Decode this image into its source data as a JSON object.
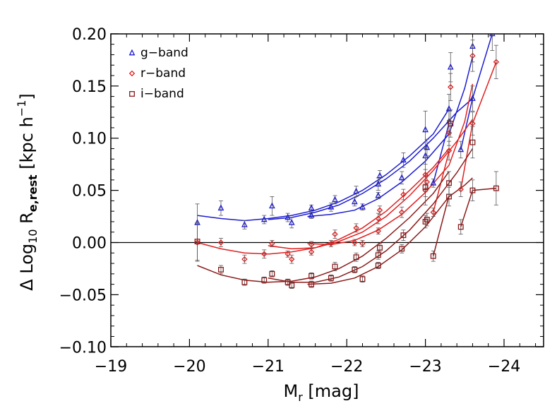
{
  "chart_data": {
    "type": "scatter",
    "title": "",
    "xlabel": {
      "main": "M",
      "sub": "r",
      "rest": " [mag]"
    },
    "ylabel": {
      "pre": "Δ Log",
      "sub1": "10",
      "mid": " R",
      "sub2": "e,rest",
      "post": " [kpc h",
      "sup": "−1",
      "end": "]"
    },
    "xlim": [
      -19,
      -24.5
    ],
    "ylim": [
      -0.105,
      0.2
    ],
    "x_reversed": true,
    "grid": false,
    "legend_position": "top-left",
    "x_ticks": [
      {
        "value": -19,
        "label": "−19"
      },
      {
        "value": -20,
        "label": "−20"
      },
      {
        "value": -21,
        "label": "−21"
      },
      {
        "value": -22,
        "label": "−22"
      },
      {
        "value": -23,
        "label": "−23"
      },
      {
        "value": -24,
        "label": "−24"
      }
    ],
    "y_ticks": [
      {
        "value": -0.1,
        "label": "−0.10"
      },
      {
        "value": -0.05,
        "label": "−0.05"
      },
      {
        "value": 0.0,
        "label": "0.00"
      },
      {
        "value": 0.05,
        "label": "0.05"
      },
      {
        "value": 0.1,
        "label": "0.10"
      },
      {
        "value": 0.15,
        "label": "0.15"
      },
      {
        "value": 0.2,
        "label": "0.20"
      }
    ],
    "reference_line_y": 0,
    "series": [
      {
        "name": "g−band",
        "color": "#1c1cd0",
        "marker": "triangle",
        "points": [
          {
            "x": -20.1,
            "y": 0.019,
            "err": 0.018
          },
          {
            "x": -20.4,
            "y": 0.033,
            "err": 0.007
          },
          {
            "x": -20.7,
            "y": 0.017,
            "err": 0.004
          },
          {
            "x": -20.95,
            "y": 0.022,
            "err": 0.004
          },
          {
            "x": -21.05,
            "y": 0.035,
            "err": 0.009
          },
          {
            "x": -21.25,
            "y": 0.024,
            "err": 0.004
          },
          {
            "x": -21.3,
            "y": 0.019,
            "err": 0.005
          },
          {
            "x": -21.55,
            "y": 0.026,
            "err": 0.003
          },
          {
            "x": -21.55,
            "y": 0.033,
            "err": 0.003
          },
          {
            "x": -21.8,
            "y": 0.034,
            "err": 0.004
          },
          {
            "x": -21.85,
            "y": 0.041,
            "err": 0.004
          },
          {
            "x": -22.1,
            "y": 0.039,
            "err": 0.004
          },
          {
            "x": -22.12,
            "y": 0.049,
            "err": 0.005
          },
          {
            "x": -22.2,
            "y": 0.034,
            "err": 0.003
          },
          {
            "x": -22.4,
            "y": 0.045,
            "err": 0.003
          },
          {
            "x": -22.4,
            "y": 0.056,
            "err": 0.006
          },
          {
            "x": -22.42,
            "y": 0.064,
            "err": 0.005
          },
          {
            "x": -22.7,
            "y": 0.062,
            "err": 0.006
          },
          {
            "x": -22.72,
            "y": 0.079,
            "err": 0.007
          },
          {
            "x": -23.0,
            "y": 0.083,
            "err": 0.008
          },
          {
            "x": -23.02,
            "y": 0.091,
            "err": 0.008
          },
          {
            "x": -23.0,
            "y": 0.108,
            "err": 0.018
          },
          {
            "x": -23.1,
            "y": 0.057,
            "err": 0.004
          },
          {
            "x": -23.3,
            "y": 0.116,
            "err": 0.011
          },
          {
            "x": -23.3,
            "y": 0.128,
            "err": 0.014
          },
          {
            "x": -23.32,
            "y": 0.168,
            "err": 0.014
          },
          {
            "x": -23.45,
            "y": 0.089,
            "err": 0.008
          },
          {
            "x": -23.6,
            "y": 0.138,
            "err": 0.012
          },
          {
            "x": -23.6,
            "y": 0.188,
            "err": 0.015
          },
          {
            "x": -23.85,
            "y": 0.2,
            "err": 0.016
          }
        ],
        "curves": [
          [
            [
              -20.1,
              0.026
            ],
            [
              -20.4,
              0.023
            ],
            [
              -20.7,
              0.021
            ],
            [
              -21.0,
              0.023
            ],
            [
              -21.3,
              0.026
            ],
            [
              -21.6,
              0.031
            ],
            [
              -21.9,
              0.039
            ],
            [
              -22.2,
              0.05
            ],
            [
              -22.5,
              0.065
            ],
            [
              -22.8,
              0.083
            ],
            [
              -23.1,
              0.104
            ],
            [
              -23.3,
              0.128
            ]
          ],
          [
            [
              -21.0,
              0.022
            ],
            [
              -21.3,
              0.024
            ],
            [
              -21.6,
              0.029
            ],
            [
              -21.9,
              0.036
            ],
            [
              -22.2,
              0.047
            ],
            [
              -22.5,
              0.061
            ],
            [
              -22.8,
              0.078
            ],
            [
              -23.1,
              0.1
            ],
            [
              -23.4,
              0.125
            ],
            [
              -23.6,
              0.138
            ]
          ],
          [
            [
              -21.5,
              0.025
            ],
            [
              -21.8,
              0.027
            ],
            [
              -22.1,
              0.031
            ],
            [
              -22.4,
              0.042
            ],
            [
              -22.7,
              0.058
            ],
            [
              -23.0,
              0.078
            ],
            [
              -23.3,
              0.104
            ],
            [
              -23.5,
              0.148
            ],
            [
              -23.6,
              0.178
            ]
          ],
          [
            [
              -23.1,
              0.057
            ],
            [
              -23.3,
              0.114
            ]
          ],
          [
            [
              -23.45,
              0.089
            ],
            [
              -23.6,
              0.138
            ],
            [
              -23.85,
              0.2
            ]
          ]
        ]
      },
      {
        "name": "r−band",
        "color": "#e02020",
        "marker": "diamond",
        "points": [
          {
            "x": -20.1,
            "y": 0.0,
            "err": 0.018
          },
          {
            "x": -20.4,
            "y": 0.0,
            "err": 0.004
          },
          {
            "x": -20.7,
            "y": -0.016,
            "err": 0.004
          },
          {
            "x": -20.95,
            "y": -0.011,
            "err": 0.004
          },
          {
            "x": -21.05,
            "y": -0.001,
            "err": 0.003
          },
          {
            "x": -21.25,
            "y": -0.011,
            "err": 0.003
          },
          {
            "x": -21.3,
            "y": -0.016,
            "err": 0.004
          },
          {
            "x": -21.55,
            "y": -0.009,
            "err": 0.003
          },
          {
            "x": -21.55,
            "y": -0.002,
            "err": 0.003
          },
          {
            "x": -21.8,
            "y": -0.001,
            "err": 0.003
          },
          {
            "x": -21.85,
            "y": 0.008,
            "err": 0.004
          },
          {
            "x": -22.1,
            "y": 0.0,
            "err": 0.003
          },
          {
            "x": -22.12,
            "y": 0.014,
            "err": 0.004
          },
          {
            "x": -22.2,
            "y": -0.001,
            "err": 0.003
          },
          {
            "x": -22.4,
            "y": 0.011,
            "err": 0.003
          },
          {
            "x": -22.4,
            "y": 0.023,
            "err": 0.005
          },
          {
            "x": -22.42,
            "y": 0.031,
            "err": 0.004
          },
          {
            "x": -22.7,
            "y": 0.029,
            "err": 0.005
          },
          {
            "x": -22.72,
            "y": 0.046,
            "err": 0.005
          },
          {
            "x": -23.0,
            "y": 0.05,
            "err": 0.006
          },
          {
            "x": -23.02,
            "y": 0.058,
            "err": 0.006
          },
          {
            "x": -23.0,
            "y": 0.065,
            "err": 0.016
          },
          {
            "x": -23.1,
            "y": 0.029,
            "err": 0.004
          },
          {
            "x": -23.3,
            "y": 0.088,
            "err": 0.009
          },
          {
            "x": -23.3,
            "y": 0.105,
            "err": 0.012
          },
          {
            "x": -23.32,
            "y": 0.149,
            "err": 0.013
          },
          {
            "x": -23.45,
            "y": 0.051,
            "err": 0.007
          },
          {
            "x": -23.6,
            "y": 0.114,
            "err": 0.011
          },
          {
            "x": -23.6,
            "y": 0.179,
            "err": 0.015
          },
          {
            "x": -23.9,
            "y": 0.173,
            "err": 0.016
          }
        ],
        "curves": [
          [
            [
              -20.1,
              0.0
            ],
            [
              -20.4,
              -0.006
            ],
            [
              -20.7,
              -0.01
            ],
            [
              -21.0,
              -0.011
            ],
            [
              -21.3,
              -0.009
            ],
            [
              -21.6,
              -0.005
            ],
            [
              -21.9,
              0.003
            ],
            [
              -22.2,
              0.014
            ],
            [
              -22.5,
              0.03
            ],
            [
              -22.8,
              0.05
            ],
            [
              -23.1,
              0.072
            ],
            [
              -23.3,
              0.09
            ]
          ],
          [
            [
              -21.0,
              -0.003
            ],
            [
              -21.3,
              -0.006
            ],
            [
              -21.6,
              -0.005
            ],
            [
              -21.9,
              0.001
            ],
            [
              -22.2,
              0.01
            ],
            [
              -22.5,
              0.025
            ],
            [
              -22.8,
              0.045
            ],
            [
              -23.1,
              0.069
            ],
            [
              -23.4,
              0.097
            ],
            [
              -23.6,
              0.118
            ]
          ],
          [
            [
              -21.5,
              -0.001
            ],
            [
              -21.8,
              -0.002
            ],
            [
              -22.1,
              0.002
            ],
            [
              -22.4,
              0.012
            ],
            [
              -22.7,
              0.027
            ],
            [
              -23.0,
              0.048
            ],
            [
              -23.3,
              0.074
            ],
            [
              -23.5,
              0.116
            ],
            [
              -23.6,
              0.152
            ]
          ],
          [
            [
              -23.1,
              0.029
            ],
            [
              -23.3,
              0.087
            ]
          ],
          [
            [
              -23.45,
              0.051
            ],
            [
              -23.6,
              0.114
            ],
            [
              -23.9,
              0.173
            ]
          ]
        ]
      },
      {
        "name": "i−band",
        "color": "#8b1a1a",
        "marker": "square",
        "points": [
          {
            "x": -20.1,
            "y": 0.001,
            "err": 0.018
          },
          {
            "x": -20.4,
            "y": -0.026,
            "err": 0.004
          },
          {
            "x": -20.7,
            "y": -0.038,
            "err": 0.003
          },
          {
            "x": -20.95,
            "y": -0.036,
            "err": 0.003
          },
          {
            "x": -21.05,
            "y": -0.03,
            "err": 0.003
          },
          {
            "x": -21.25,
            "y": -0.038,
            "err": 0.003
          },
          {
            "x": -21.3,
            "y": -0.041,
            "err": 0.003
          },
          {
            "x": -21.55,
            "y": -0.04,
            "err": 0.003
          },
          {
            "x": -21.55,
            "y": -0.032,
            "err": 0.003
          },
          {
            "x": -21.8,
            "y": -0.034,
            "err": 0.003
          },
          {
            "x": -21.85,
            "y": -0.023,
            "err": 0.004
          },
          {
            "x": -22.1,
            "y": -0.026,
            "err": 0.003
          },
          {
            "x": -22.12,
            "y": -0.014,
            "err": 0.004
          },
          {
            "x": -22.2,
            "y": -0.035,
            "err": 0.003
          },
          {
            "x": -22.4,
            "y": -0.022,
            "err": 0.003
          },
          {
            "x": -22.4,
            "y": -0.012,
            "err": 0.004
          },
          {
            "x": -22.42,
            "y": -0.005,
            "err": 0.004
          },
          {
            "x": -22.7,
            "y": -0.006,
            "err": 0.004
          },
          {
            "x": -22.72,
            "y": 0.007,
            "err": 0.005
          },
          {
            "x": -23.0,
            "y": 0.02,
            "err": 0.006
          },
          {
            "x": -23.02,
            "y": 0.022,
            "err": 0.006
          },
          {
            "x": -23.0,
            "y": 0.053,
            "err": 0.017
          },
          {
            "x": -23.1,
            "y": -0.013,
            "err": 0.005
          },
          {
            "x": -23.3,
            "y": 0.044,
            "err": 0.009
          },
          {
            "x": -23.3,
            "y": 0.057,
            "err": 0.011
          },
          {
            "x": -23.32,
            "y": 0.114,
            "err": 0.013
          },
          {
            "x": -23.45,
            "y": 0.015,
            "err": 0.007
          },
          {
            "x": -23.6,
            "y": 0.05,
            "err": 0.01
          },
          {
            "x": -23.6,
            "y": 0.096,
            "err": 0.015
          },
          {
            "x": -23.9,
            "y": 0.052,
            "err": 0.016
          }
        ],
        "curves": [
          [
            [
              -20.1,
              -0.022
            ],
            [
              -20.4,
              -0.031
            ],
            [
              -20.7,
              -0.036
            ],
            [
              -21.0,
              -0.038
            ],
            [
              -21.3,
              -0.037
            ],
            [
              -21.6,
              -0.033
            ],
            [
              -21.9,
              -0.025
            ],
            [
              -22.2,
              -0.013
            ],
            [
              -22.5,
              0.004
            ],
            [
              -22.8,
              0.024
            ],
            [
              -23.1,
              0.047
            ],
            [
              -23.3,
              0.068
            ]
          ],
          [
            [
              -21.0,
              -0.034
            ],
            [
              -21.3,
              -0.038
            ],
            [
              -21.6,
              -0.038
            ],
            [
              -21.9,
              -0.033
            ],
            [
              -22.2,
              -0.023
            ],
            [
              -22.5,
              -0.008
            ],
            [
              -22.8,
              0.012
            ],
            [
              -23.1,
              0.037
            ],
            [
              -23.4,
              0.067
            ],
            [
              -23.6,
              0.09
            ]
          ],
          [
            [
              -21.5,
              -0.04
            ],
            [
              -21.8,
              -0.039
            ],
            [
              -22.1,
              -0.034
            ],
            [
              -22.4,
              -0.023
            ],
            [
              -22.7,
              -0.007
            ],
            [
              -23.0,
              0.015
            ],
            [
              -23.3,
              0.044
            ],
            [
              -23.5,
              0.055
            ],
            [
              -23.6,
              0.062
            ]
          ],
          [
            [
              -23.1,
              -0.013
            ],
            [
              -23.3,
              0.045
            ]
          ],
          [
            [
              -23.45,
              0.015
            ],
            [
              -23.6,
              0.05
            ],
            [
              -23.9,
              0.052
            ]
          ]
        ]
      }
    ]
  }
}
